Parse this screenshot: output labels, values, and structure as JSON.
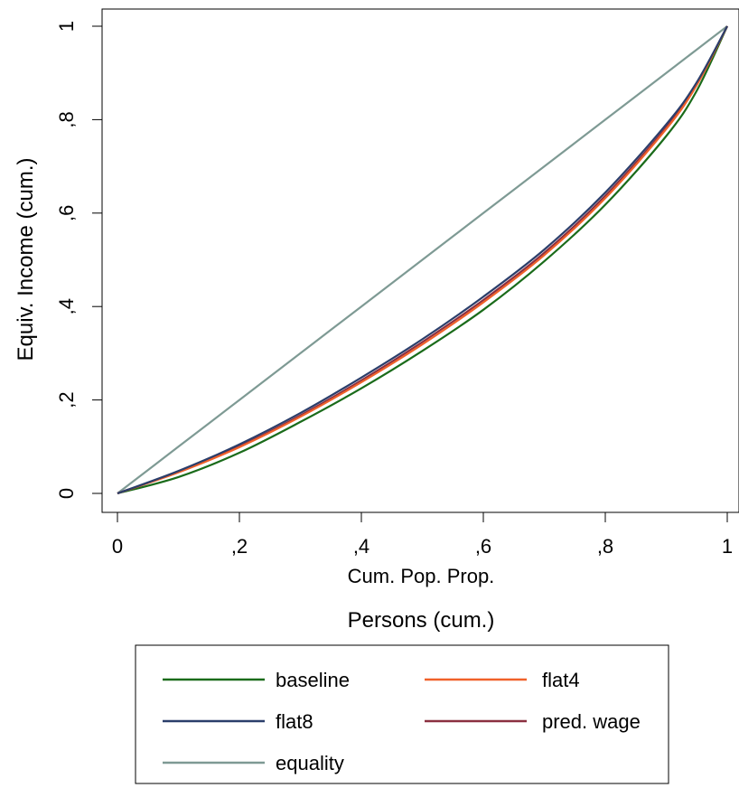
{
  "chart_data": {
    "type": "line",
    "title": "",
    "xlabel_sub": "Cum. Pop. Prop.",
    "xlabel": "Persons (cum.)",
    "ylabel": "Equiv. Income (cum.)",
    "xlim": [
      0,
      1
    ],
    "ylim": [
      0,
      1
    ],
    "x_ticks": [
      0,
      0.2,
      0.4,
      0.6,
      0.8,
      1
    ],
    "x_tick_labels": [
      "0",
      ",2",
      ",4",
      ",6",
      ",8",
      "1"
    ],
    "y_ticks": [
      0,
      0.2,
      0.4,
      0.6,
      0.8,
      1
    ],
    "y_tick_labels": [
      "0",
      ",2",
      ",4",
      ",6",
      ",8",
      "1"
    ],
    "grid": false,
    "legend_position": "bottom",
    "x": [
      0,
      0.1,
      0.2,
      0.3,
      0.4,
      0.5,
      0.6,
      0.7,
      0.8,
      0.9,
      0.95,
      1
    ],
    "series": [
      {
        "name": "baseline",
        "color": "#1a6b1a",
        "values": [
          0,
          0.035,
          0.087,
          0.153,
          0.225,
          0.305,
          0.393,
          0.497,
          0.618,
          0.765,
          0.862,
          1
        ]
      },
      {
        "name": "flat4",
        "color": "#f0612a",
        "values": [
          0,
          0.045,
          0.099,
          0.164,
          0.238,
          0.319,
          0.409,
          0.51,
          0.632,
          0.78,
          0.874,
          1
        ]
      },
      {
        "name": "flat8",
        "color": "#2b3e6b",
        "values": [
          0,
          0.048,
          0.105,
          0.172,
          0.248,
          0.33,
          0.421,
          0.522,
          0.644,
          0.79,
          0.88,
          1
        ]
      },
      {
        "name": "pred. wage",
        "color": "#8b3040",
        "values": [
          0,
          0.046,
          0.101,
          0.167,
          0.242,
          0.324,
          0.414,
          0.515,
          0.637,
          0.784,
          0.877,
          1
        ]
      },
      {
        "name": "equality",
        "color": "#7e9a94",
        "values": [
          0,
          0.1,
          0.2,
          0.3,
          0.4,
          0.5,
          0.6,
          0.7,
          0.8,
          0.9,
          0.95,
          1
        ]
      }
    ],
    "legend_order": [
      "baseline",
      "flat4",
      "flat8",
      "pred. wage",
      "equality"
    ]
  }
}
